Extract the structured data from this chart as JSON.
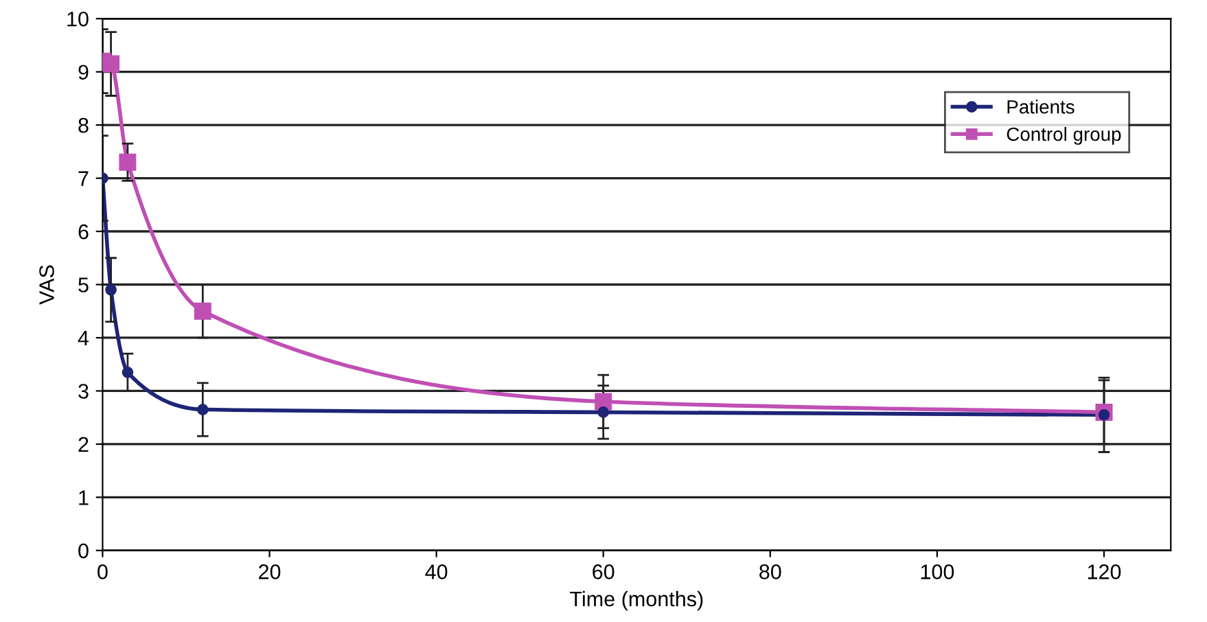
{
  "chart_data": {
    "type": "line",
    "xlabel": "Time (months)",
    "ylabel": "VAS",
    "xlim": [
      0,
      128
    ],
    "xticks": [
      0,
      20,
      40,
      60,
      80,
      100,
      120
    ],
    "ylim": [
      0,
      10
    ],
    "yticks": [
      0,
      1,
      2,
      3,
      4,
      5,
      6,
      7,
      8,
      9,
      10
    ],
    "grid": "y",
    "legend": "top right",
    "series": [
      {
        "name": "Patients",
        "color": "#1e2476",
        "marker": "circle",
        "x": [
          0,
          1,
          3,
          12,
          60,
          120
        ],
        "values": [
          7.0,
          4.9,
          3.35,
          2.65,
          2.6,
          2.55
        ],
        "errors": [
          0.8,
          0.6,
          0.35,
          0.5,
          0.5,
          0.7
        ]
      },
      {
        "name": "Control group",
        "color": "#c04fb4",
        "marker": "square",
        "x": [
          0,
          1,
          3,
          12,
          60,
          120
        ],
        "values": [
          9.2,
          9.15,
          7.3,
          4.5,
          2.8,
          2.6
        ],
        "errors": [
          0.6,
          0.6,
          0.35,
          0.5,
          0.5,
          0.6
        ]
      }
    ]
  }
}
